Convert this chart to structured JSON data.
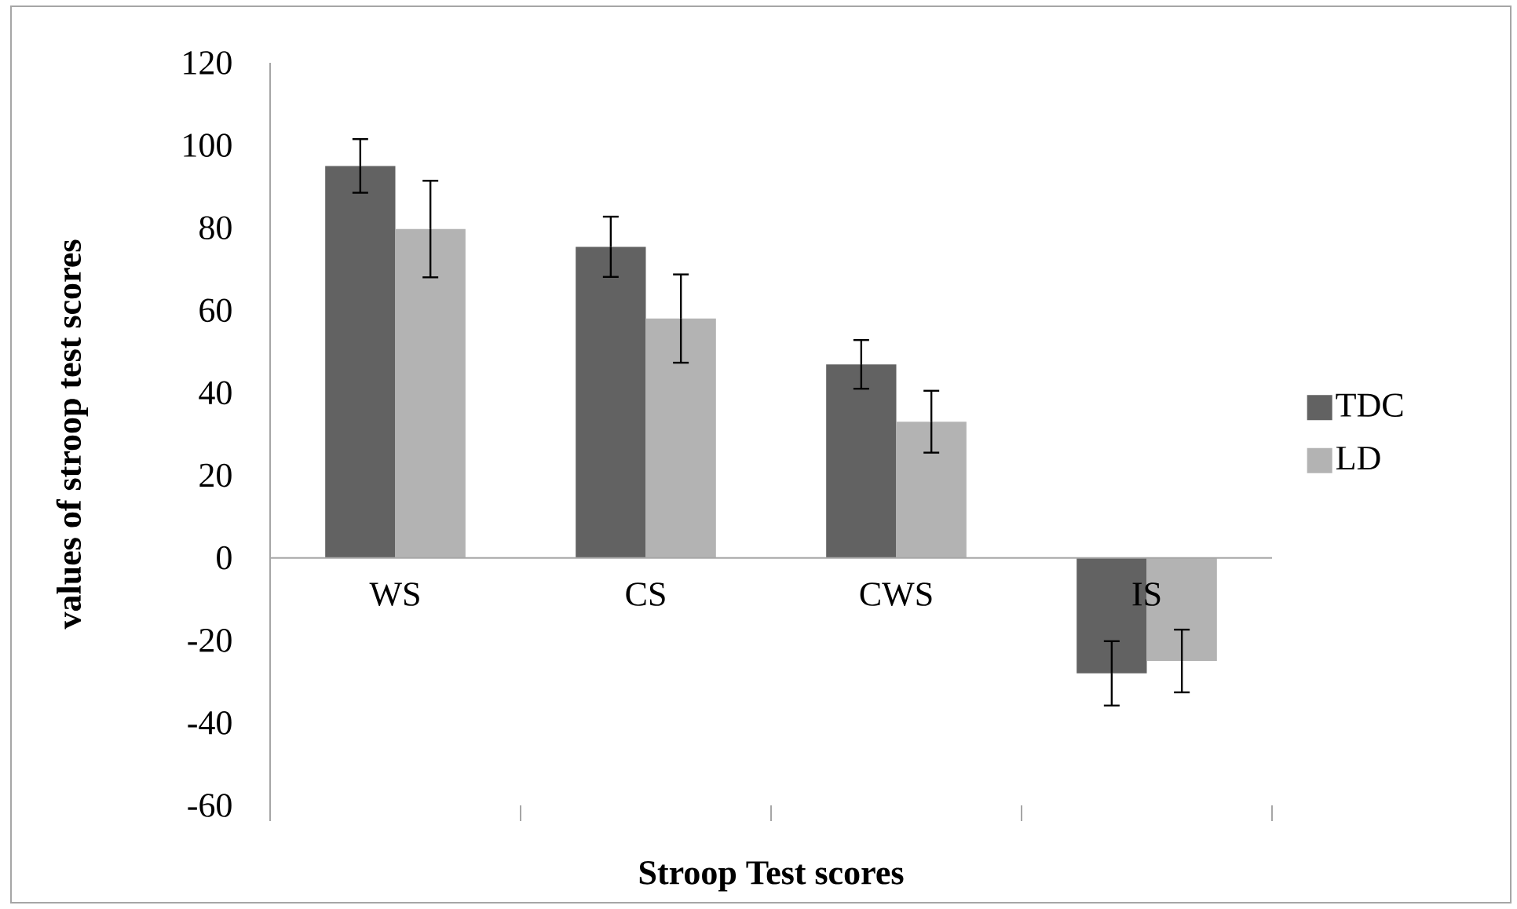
{
  "chart_data": {
    "type": "bar",
    "xlabel": "Stroop Test scores",
    "ylabel": "values of stroop test scores",
    "categories": [
      "WS",
      "CS",
      "CWS",
      "IS"
    ],
    "series": [
      {
        "name": "TDC",
        "color": "#626262",
        "values": [
          95,
          75.4,
          46.9,
          -28
        ],
        "errors": [
          6.5,
          7.3,
          5.9,
          7.8
        ]
      },
      {
        "name": "LD",
        "color": "#b3b3b3",
        "values": [
          79.7,
          58,
          33,
          -25
        ],
        "errors": [
          11.7,
          10.7,
          7.5,
          7.6
        ]
      }
    ],
    "ylim": [
      -60,
      120
    ],
    "yticks": [
      -60,
      -40,
      -20,
      0,
      20,
      40,
      60,
      80,
      100,
      120
    ],
    "legend": "right"
  }
}
